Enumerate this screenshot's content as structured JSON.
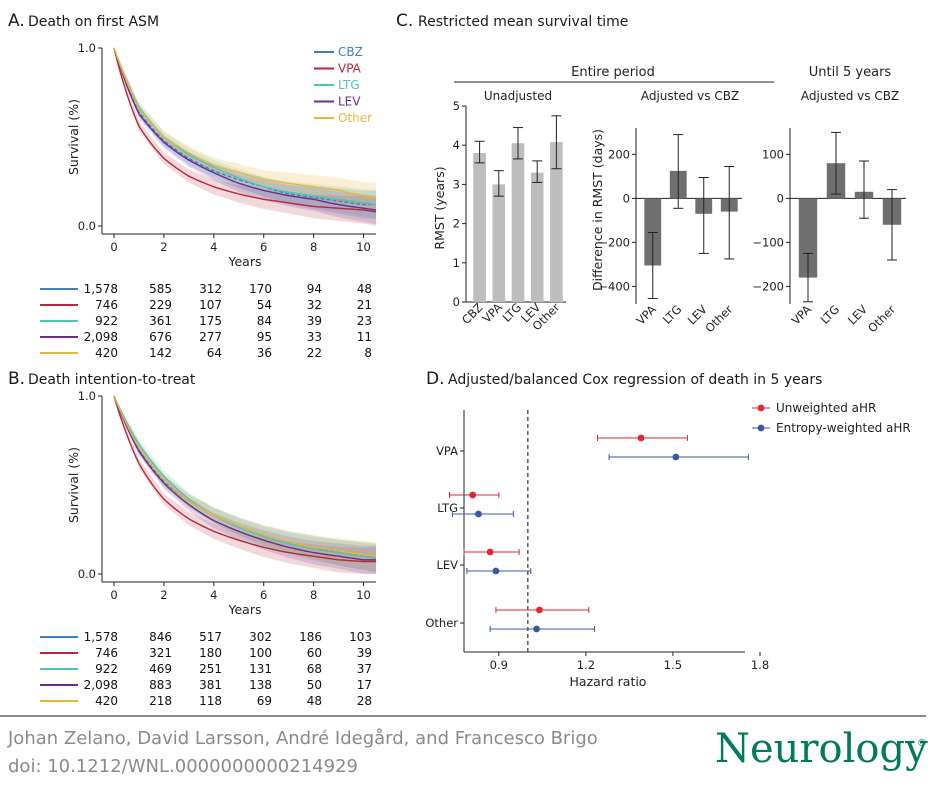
{
  "panels": {
    "A": {
      "letter": "A.",
      "title": "Death on first ASM",
      "ylabel": "Survival (%)",
      "xlabel": "Years",
      "yticks": [
        "1.0",
        "0.0"
      ],
      "xticks": [
        "0",
        "2",
        "4",
        "6",
        "8",
        "10"
      ],
      "legend": [
        {
          "name": "CBZ",
          "color": "#3b82c4"
        },
        {
          "name": "VPA",
          "color": "#b8273a"
        },
        {
          "name": "LTG",
          "color": "#4ec3b8"
        },
        {
          "name": "LEV",
          "color": "#6a2c91"
        },
        {
          "name": "Other",
          "color": "#e8b63a"
        }
      ],
      "risk_table": [
        [
          "1,578",
          "585",
          "312",
          "170",
          "94",
          "48"
        ],
        [
          "746",
          "229",
          "107",
          "54",
          "32",
          "21"
        ],
        [
          "922",
          "361",
          "175",
          "84",
          "39",
          "23"
        ],
        [
          "2,098",
          "676",
          "277",
          "95",
          "33",
          "11"
        ],
        [
          "420",
          "142",
          "64",
          "36",
          "22",
          "8"
        ]
      ]
    },
    "B": {
      "letter": "B.",
      "title": "Death intention-to-treat",
      "ylabel": "Survival (%)",
      "xlabel": "Years",
      "yticks": [
        "1.0",
        "0.0"
      ],
      "xticks": [
        "0",
        "2",
        "4",
        "6",
        "8",
        "10"
      ],
      "risk_table": [
        [
          "1,578",
          "846",
          "517",
          "302",
          "186",
          "103"
        ],
        [
          "746",
          "321",
          "180",
          "100",
          "60",
          "39"
        ],
        [
          "922",
          "469",
          "251",
          "131",
          "68",
          "37"
        ],
        [
          "2,098",
          "883",
          "381",
          "138",
          "50",
          "17"
        ],
        [
          "420",
          "218",
          "118",
          "69",
          "48",
          "28"
        ]
      ]
    },
    "C": {
      "letter": "C.",
      "title": "Restricted mean survival time",
      "header_entire": "Entire period",
      "header_until": "Until 5 years",
      "sub_unadjusted": "Unadjusted",
      "sub_adjusted1": "Adjusted vs CBZ",
      "sub_adjusted2": "Adjusted vs CBZ",
      "ylabel1": "RMST (years)",
      "ylabel2": "Difference in RMST (days)",
      "yticks1": [
        "0",
        "1",
        "2",
        "3",
        "4",
        "5"
      ],
      "yticks2": [
        "−400",
        "−200",
        "0",
        "200"
      ],
      "yticks3": [
        "−200",
        "−100",
        "0",
        "100"
      ]
    },
    "D": {
      "letter": "D.",
      "title": "Adjusted/balanced Cox regression of death in 5 years",
      "xlabel": "Hazard ratio",
      "xticks": [
        "0.9",
        "1.2",
        "1.5",
        "1.8"
      ],
      "legend": [
        {
          "name": "Unweighted aHR",
          "color": "#e0262f"
        },
        {
          "name": "Entropy-weighted aHR",
          "color": "#3a57a6"
        }
      ]
    }
  },
  "chart_data": [
    {
      "type": "line",
      "title": "Death on first ASM",
      "xlabel": "Years",
      "ylabel": "Survival (%)",
      "xlim": [
        0,
        10.5
      ],
      "ylim": [
        0,
        1
      ],
      "series": [
        {
          "name": "CBZ",
          "x": [
            0,
            1,
            2,
            3,
            4,
            5,
            6,
            7,
            8,
            9,
            10,
            10.5
          ],
          "values": [
            1.0,
            0.64,
            0.48,
            0.38,
            0.31,
            0.26,
            0.22,
            0.18,
            0.16,
            0.14,
            0.12,
            0.12
          ]
        },
        {
          "name": "VPA",
          "x": [
            0,
            1,
            2,
            3,
            4,
            5,
            6,
            7,
            8,
            9,
            10,
            10.5
          ],
          "values": [
            1.0,
            0.56,
            0.38,
            0.28,
            0.22,
            0.18,
            0.15,
            0.13,
            0.11,
            0.1,
            0.09,
            0.08
          ]
        },
        {
          "name": "LTG",
          "x": [
            0,
            1,
            2,
            3,
            4,
            5,
            6,
            7,
            8,
            9,
            10,
            10.5
          ],
          "values": [
            1.0,
            0.67,
            0.5,
            0.4,
            0.33,
            0.27,
            0.22,
            0.19,
            0.17,
            0.15,
            0.13,
            0.12
          ]
        },
        {
          "name": "LEV",
          "x": [
            0,
            1,
            2,
            3,
            4,
            5,
            6,
            7,
            8,
            9,
            10,
            10.5
          ],
          "values": [
            1.0,
            0.63,
            0.47,
            0.37,
            0.3,
            0.24,
            0.2,
            0.17,
            0.15,
            0.12,
            0.1,
            0.09
          ]
        },
        {
          "name": "Other",
          "x": [
            0,
            1,
            2,
            3,
            4,
            5,
            6,
            7,
            8,
            9,
            10,
            10.5
          ],
          "values": [
            1.0,
            0.66,
            0.5,
            0.41,
            0.34,
            0.3,
            0.26,
            0.24,
            0.22,
            0.2,
            0.17,
            0.16
          ]
        }
      ]
    },
    {
      "type": "line",
      "title": "Death intention-to-treat",
      "xlabel": "Years",
      "ylabel": "Survival (%)",
      "xlim": [
        0,
        10.5
      ],
      "ylim": [
        0,
        1
      ],
      "series": [
        {
          "name": "CBZ",
          "x": [
            0,
            1,
            2,
            3,
            4,
            5,
            6,
            7,
            8,
            9,
            10,
            10.5
          ],
          "values": [
            1.0,
            0.7,
            0.52,
            0.41,
            0.33,
            0.27,
            0.22,
            0.18,
            0.15,
            0.12,
            0.1,
            0.09
          ]
        },
        {
          "name": "VPA",
          "x": [
            0,
            1,
            2,
            3,
            4,
            5,
            6,
            7,
            8,
            9,
            10,
            10.5
          ],
          "values": [
            1.0,
            0.62,
            0.42,
            0.31,
            0.24,
            0.19,
            0.15,
            0.12,
            0.1,
            0.08,
            0.07,
            0.07
          ]
        },
        {
          "name": "LTG",
          "x": [
            0,
            1,
            2,
            3,
            4,
            5,
            6,
            7,
            8,
            9,
            10,
            10.5
          ],
          "values": [
            1.0,
            0.73,
            0.55,
            0.42,
            0.33,
            0.26,
            0.21,
            0.17,
            0.14,
            0.12,
            0.1,
            0.09
          ]
        },
        {
          "name": "LEV",
          "x": [
            0,
            1,
            2,
            3,
            4,
            5,
            6,
            7,
            8,
            9,
            10,
            10.5
          ],
          "values": [
            1.0,
            0.69,
            0.51,
            0.39,
            0.3,
            0.24,
            0.19,
            0.15,
            0.12,
            0.1,
            0.08,
            0.08
          ]
        },
        {
          "name": "Other",
          "x": [
            0,
            1,
            2,
            3,
            4,
            5,
            6,
            7,
            8,
            9,
            10,
            10.5
          ],
          "values": [
            1.0,
            0.71,
            0.53,
            0.41,
            0.33,
            0.27,
            0.22,
            0.18,
            0.15,
            0.13,
            0.11,
            0.1
          ]
        }
      ]
    },
    {
      "type": "bar",
      "title": "Unadjusted",
      "ylabel": "RMST (years)",
      "ylim": [
        0,
        5
      ],
      "categories": [
        "CBZ",
        "VPA",
        "LTG",
        "LEV",
        "Other"
      ],
      "values": [
        3.8,
        3.0,
        4.05,
        3.3,
        4.08
      ],
      "ci_low": [
        3.55,
        2.7,
        3.65,
        3.05,
        3.4
      ],
      "ci_high": [
        4.1,
        3.35,
        4.45,
        3.6,
        4.75
      ]
    },
    {
      "type": "bar",
      "title": "Adjusted vs CBZ",
      "ylabel": "Difference in RMST (days)",
      "ylim": [
        -480,
        320
      ],
      "categories": [
        "VPA",
        "LTG",
        "LEV",
        "Other"
      ],
      "values": [
        -305,
        125,
        -70,
        -60
      ],
      "ci_low": [
        -455,
        -45,
        -250,
        -275
      ],
      "ci_high": [
        -155,
        290,
        95,
        145
      ]
    },
    {
      "type": "bar",
      "title": "Adjusted vs CBZ",
      "ylim": [
        -240,
        160
      ],
      "categories": [
        "VPA",
        "LTG",
        "LEV",
        "Other"
      ],
      "values": [
        -180,
        80,
        15,
        -60
      ],
      "ci_low": [
        -235,
        10,
        -45,
        -140
      ],
      "ci_high": [
        -125,
        150,
        85,
        20
      ]
    },
    {
      "type": "scatter",
      "title": "Adjusted/balanced Cox regression of death in 5 years",
      "xlabel": "Hazard ratio",
      "xlim": [
        0.78,
        1.8
      ],
      "reference_x": 1.0,
      "categories": [
        "VPA",
        "LTG",
        "LEV",
        "Other"
      ],
      "series": [
        {
          "name": "Unweighted aHR",
          "values": [
            1.39,
            0.81,
            0.87,
            1.04
          ],
          "ci_low": [
            1.24,
            0.73,
            0.78,
            0.89
          ],
          "ci_high": [
            1.55,
            0.9,
            0.97,
            1.21
          ]
        },
        {
          "name": "Entropy-weighted aHR",
          "values": [
            1.51,
            0.83,
            0.89,
            1.03
          ],
          "ci_low": [
            1.28,
            0.74,
            0.79,
            0.87
          ],
          "ci_high": [
            1.76,
            0.95,
            1.01,
            1.23
          ]
        }
      ]
    }
  ],
  "footer": {
    "authors": "Johan Zelano, David Larsson, André Idegård, and Francesco Brigo",
    "doi": "doi: 10.1212/WNL.0000000000214929",
    "journal": "Neurology",
    "reg": "®"
  }
}
